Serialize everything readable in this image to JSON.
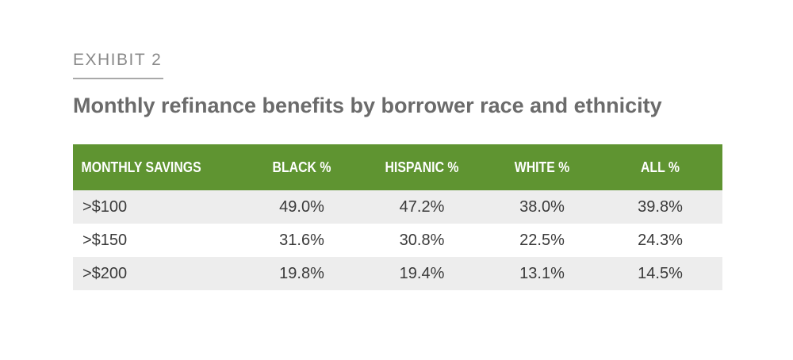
{
  "exhibit": {
    "label": "EXHIBIT 2"
  },
  "title": "Monthly refinance benefits by borrower race and ethnicity",
  "table": {
    "columns": [
      "MONTHLY SAVINGS",
      "BLACK %",
      "HISPANIC %",
      "WHITE %",
      "ALL %"
    ],
    "rows": [
      [
        ">$100",
        "49.0%",
        "47.2%",
        "38.0%",
        "39.8%"
      ],
      [
        ">$150",
        "31.6%",
        "30.8%",
        "22.5%",
        "24.3%"
      ],
      [
        ">$200",
        "19.8%",
        "19.4%",
        "13.1%",
        "14.5%"
      ]
    ]
  },
  "colors": {
    "header_bg": "#5f9431",
    "header_text": "#ffffff",
    "row_shade": "#ededed",
    "title_text": "#6b6b6b",
    "exhibit_text": "#8a8a8a"
  }
}
